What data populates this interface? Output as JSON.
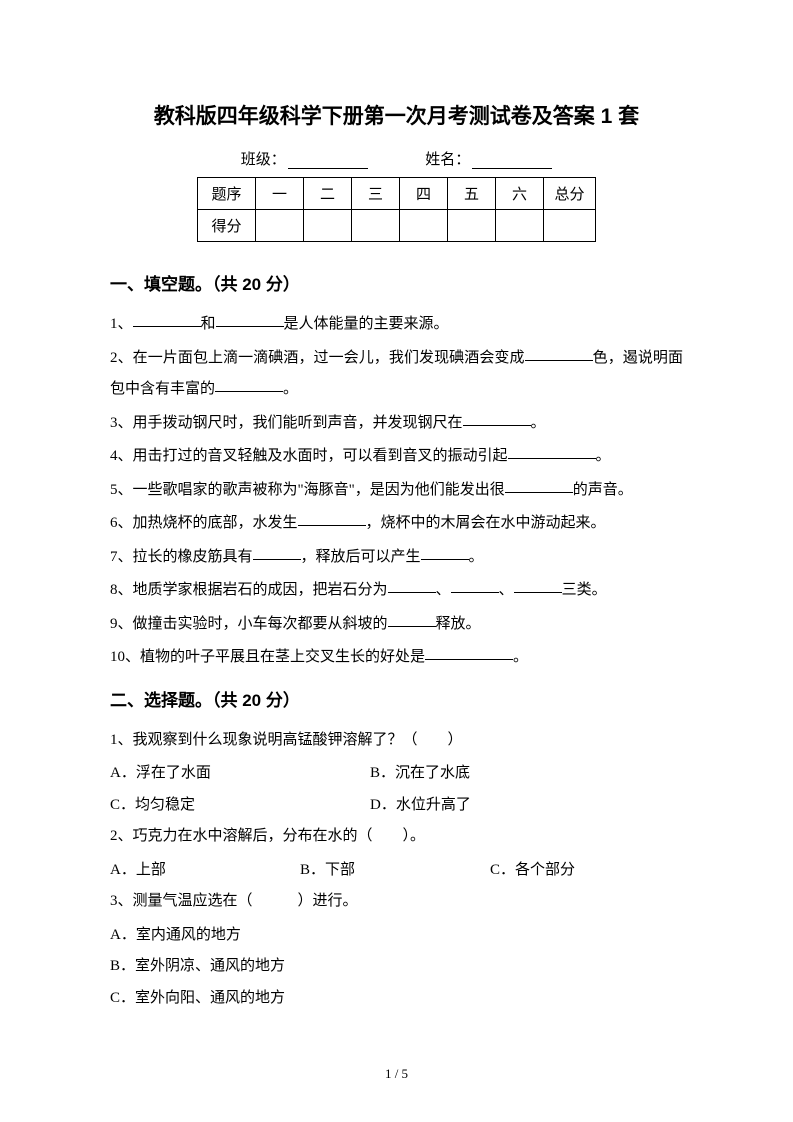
{
  "title": "教科版四年级科学下册第一次月考测试卷及答案 1 套",
  "info": {
    "class_label": "班级：",
    "name_label": "姓名："
  },
  "score_table": {
    "header_label": "题序",
    "score_label": "得分",
    "cols": [
      "一",
      "二",
      "三",
      "四",
      "五",
      "六"
    ],
    "total_label": "总分"
  },
  "section1": {
    "title": "一、填空题。（共 20 分）",
    "items": [
      {
        "pre": "1、",
        "parts": [
          "",
          "和",
          "",
          "是人体能量的主要来源。"
        ]
      },
      {
        "pre": "2、",
        "text_a": "在一片面包上滴一滴碘酒，过一会儿，我们发现碘酒会变成",
        "text_b": "色，遏说明面包中含有丰富的",
        "text_c": "。"
      },
      {
        "pre": "3、",
        "text_a": "用手拨动钢尺时，我们能听到声音，并发现钢尺在",
        "text_b": "。"
      },
      {
        "pre": "4、",
        "text_a": "用击打过的音叉轻触及水面时，可以看到音叉的振动引起",
        "text_b": "。"
      },
      {
        "pre": "5、",
        "text_a": "一些歌唱家的歌声被称为\"海豚音\"，是因为他们能发出很",
        "text_b": "的声音。"
      },
      {
        "pre": "6、",
        "text_a": "加热烧杯的底部，水发生",
        "text_b": "，烧杯中的木屑会在水中游动起来。"
      },
      {
        "pre": "7、",
        "text_a": "拉长的橡皮筋具有",
        "text_b": "，释放后可以产生",
        "text_c": "。"
      },
      {
        "pre": "8、",
        "text_a": "地质学家根据岩石的成因，把岩石分为",
        "text_b": "、",
        "text_c": "、",
        "text_d": "三类。"
      },
      {
        "pre": "9、",
        "text_a": "做撞击实验时，小车每次都要从斜坡的",
        "text_b": "释放。"
      },
      {
        "pre": "10、",
        "text_a": "植物的叶子平展且在茎上交叉生长的好处是",
        "text_b": "。"
      }
    ]
  },
  "section2": {
    "title": "二、选择题。（共 20 分）",
    "q1": {
      "stem": "1、我观察到什么现象说明高锰酸钾溶解了？（　　）",
      "opts": [
        "A．浮在了水面",
        "B．沉在了水底",
        "C．均匀稳定",
        "D．水位升高了"
      ]
    },
    "q2": {
      "stem": "2、巧克力在水中溶解后，分布在水的（　　）。",
      "opts": [
        "A．上部",
        "B．下部",
        "C．各个部分"
      ]
    },
    "q3": {
      "stem": "3、测量气温应选在（　　　）进行。",
      "opts": [
        "A．室内通风的地方",
        "B．室外阴凉、通风的地方",
        "C．室外向阳、通风的地方"
      ]
    }
  },
  "page_num": "1 / 5"
}
